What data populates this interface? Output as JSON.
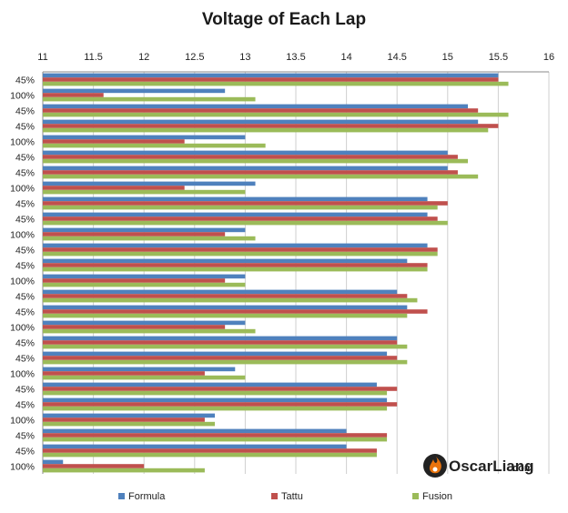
{
  "chart_data": {
    "type": "bar",
    "orientation": "horizontal",
    "title": "Voltage of Each Lap",
    "xlim": [
      11,
      16
    ],
    "x_ticks": [
      "11",
      "11.5",
      "12",
      "12.5",
      "13",
      "13.5",
      "14",
      "14.5",
      "15",
      "15.5",
      "16"
    ],
    "x_tick_values": [
      11,
      11.5,
      12,
      12.5,
      13,
      13.5,
      14,
      14.5,
      15,
      15.5,
      16
    ],
    "categories": [
      "45%",
      "100%",
      "45%",
      "45%",
      "100%",
      "45%",
      "45%",
      "100%",
      "45%",
      "45%",
      "100%",
      "45%",
      "45%",
      "100%",
      "45%",
      "45%",
      "100%",
      "45%",
      "45%",
      "100%",
      "45%",
      "45%",
      "100%",
      "45%",
      "45%",
      "100%"
    ],
    "series": [
      {
        "name": "Formula",
        "color": "#4f81bd",
        "values": [
          15.5,
          12.8,
          15.2,
          15.3,
          13.0,
          15.0,
          15.0,
          13.1,
          14.8,
          14.8,
          13.0,
          14.8,
          14.6,
          13.0,
          14.5,
          14.6,
          13.0,
          14.5,
          14.4,
          12.9,
          14.3,
          14.4,
          12.7,
          14.0,
          14.0,
          11.2
        ]
      },
      {
        "name": "Tattu",
        "color": "#c0504d",
        "values": [
          15.5,
          11.6,
          15.3,
          15.5,
          12.4,
          15.1,
          15.1,
          12.4,
          15.0,
          14.9,
          12.8,
          14.9,
          14.8,
          12.8,
          14.6,
          14.8,
          12.8,
          14.5,
          14.5,
          12.6,
          14.5,
          14.5,
          12.6,
          14.4,
          14.3,
          12.0
        ]
      },
      {
        "name": "Fusion",
        "color": "#9bbb59",
        "values": [
          15.6,
          13.1,
          15.6,
          15.4,
          13.2,
          15.2,
          15.3,
          13.0,
          14.9,
          15.0,
          13.1,
          14.9,
          14.8,
          13.0,
          14.7,
          14.6,
          13.1,
          14.6,
          14.6,
          13.0,
          14.4,
          14.4,
          12.7,
          14.4,
          14.3,
          12.6
        ]
      }
    ],
    "legend_position": "bottom",
    "grid": true
  },
  "watermark": {
    "brand_main": "OscarLiang",
    "brand_suffix": ".com",
    "logo_icon": "flame-logo-icon",
    "logo_color": "#e8730c"
  }
}
